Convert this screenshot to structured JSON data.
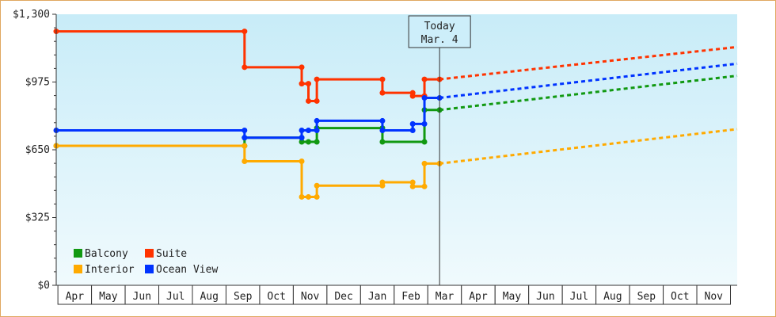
{
  "colors": {
    "background_top": "#c8ecf8",
    "background_bottom": "#f0fafd",
    "frame_border": "#e0a860",
    "balcony": "#119911",
    "suite": "#ff3300",
    "interior": "#ffaa00",
    "ocean_view": "#0033ff"
  },
  "today_marker": {
    "line1": "Today",
    "line2": "Mar. 4"
  },
  "chart_data": {
    "type": "line",
    "title": "",
    "xlabel": "",
    "ylabel": "",
    "ylim": [
      0,
      1300
    ],
    "y_ticks": [
      {
        "value": 0,
        "label": "$0"
      },
      {
        "value": 325,
        "label": "$325"
      },
      {
        "value": 650,
        "label": "$650"
      },
      {
        "value": 975,
        "label": "$975"
      },
      {
        "value": 1300,
        "label": "$1,300"
      }
    ],
    "x_tick_labels": [
      "Apr",
      "May",
      "Jun",
      "Jul",
      "Aug",
      "Sep",
      "Oct",
      "Nov",
      "Dec",
      "Jan",
      "Feb",
      "Mar",
      "Apr",
      "May",
      "Jun",
      "Jul",
      "Aug",
      "Sep",
      "Oct",
      "Nov"
    ],
    "x_range_months": [
      0,
      20.25
    ],
    "today_month": 11.4,
    "legend_position": "bottom-left",
    "series": [
      {
        "name": "Balcony",
        "color_key": "balcony",
        "points": [
          [
            0,
            669
          ],
          [
            5.6,
            669
          ],
          [
            5.6,
            708
          ],
          [
            7.3,
            708
          ],
          [
            7.3,
            688
          ],
          [
            7.5,
            688
          ],
          [
            7.75,
            688
          ],
          [
            7.75,
            754
          ],
          [
            9.7,
            754
          ],
          [
            9.7,
            688
          ],
          [
            10.95,
            688
          ],
          [
            10.95,
            841
          ],
          [
            11.4,
            841
          ]
        ],
        "projection": [
          [
            11.4,
            841
          ],
          [
            20.25,
            1005
          ]
        ]
      },
      {
        "name": "Suite",
        "color_key": "suite",
        "points": [
          [
            0,
            1218
          ],
          [
            5.6,
            1218
          ],
          [
            5.6,
            1046
          ],
          [
            7.3,
            1046
          ],
          [
            7.3,
            967
          ],
          [
            7.5,
            967
          ],
          [
            7.5,
            884
          ],
          [
            7.75,
            884
          ],
          [
            7.75,
            988
          ],
          [
            9.7,
            988
          ],
          [
            9.7,
            923
          ],
          [
            10.6,
            923
          ],
          [
            10.6,
            908
          ],
          [
            10.95,
            908
          ],
          [
            10.95,
            988
          ],
          [
            11.4,
            988
          ]
        ],
        "projection": [
          [
            11.4,
            988
          ],
          [
            20.25,
            1143
          ]
        ]
      },
      {
        "name": "Interior",
        "color_key": "interior",
        "points": [
          [
            0,
            669
          ],
          [
            5.6,
            669
          ],
          [
            5.6,
            595
          ],
          [
            7.3,
            595
          ],
          [
            7.3,
            424
          ],
          [
            7.5,
            424
          ],
          [
            7.75,
            424
          ],
          [
            7.75,
            478
          ],
          [
            9.7,
            478
          ],
          [
            9.7,
            494
          ],
          [
            10.6,
            494
          ],
          [
            10.6,
            474
          ],
          [
            10.95,
            474
          ],
          [
            10.95,
            584
          ],
          [
            11.4,
            584
          ]
        ],
        "projection": [
          [
            11.4,
            584
          ],
          [
            20.25,
            749
          ]
        ]
      },
      {
        "name": "Ocean View",
        "color_key": "ocean_view",
        "points": [
          [
            0,
            743
          ],
          [
            5.6,
            743
          ],
          [
            5.6,
            708
          ],
          [
            7.3,
            708
          ],
          [
            7.3,
            743
          ],
          [
            7.5,
            743
          ],
          [
            7.75,
            743
          ],
          [
            7.75,
            789
          ],
          [
            9.7,
            789
          ],
          [
            9.7,
            743
          ],
          [
            10.6,
            743
          ],
          [
            10.6,
            774
          ],
          [
            10.95,
            774
          ],
          [
            10.95,
            899
          ],
          [
            11.4,
            899
          ]
        ],
        "projection": [
          [
            11.4,
            899
          ],
          [
            20.25,
            1063
          ]
        ]
      }
    ]
  }
}
